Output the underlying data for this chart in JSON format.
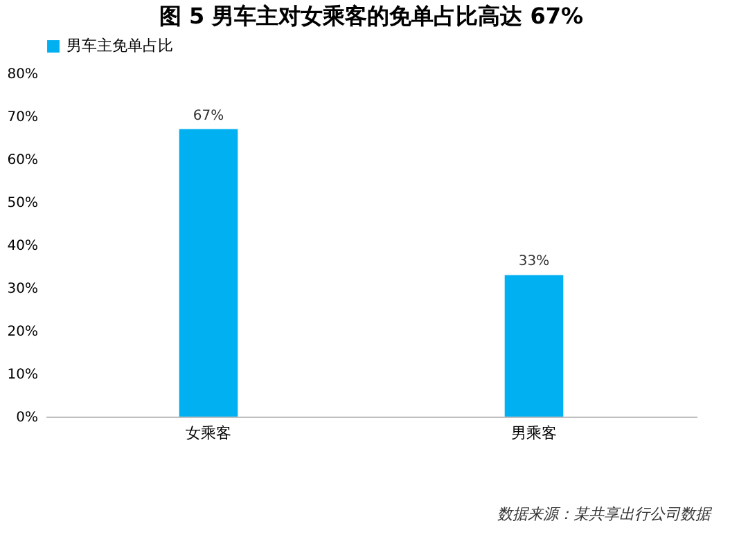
{
  "chart_data": {
    "type": "bar",
    "title": "图 5  男车主对女乘客的免单占比高达 67%",
    "categories": [
      "女乘客",
      "男乘客"
    ],
    "series": [
      {
        "name": "男车主免单占比",
        "color": "#00b0f0",
        "values": [
          67,
          33
        ],
        "value_labels": [
          "67%",
          "33%"
        ]
      }
    ],
    "ylim": [
      0,
      80
    ],
    "yticks": [
      {
        "value": 0,
        "label": "0%"
      },
      {
        "value": 10,
        "label": "10%"
      },
      {
        "value": 20,
        "label": "20%"
      },
      {
        "value": 30,
        "label": "30%"
      },
      {
        "value": 40,
        "label": "40%"
      },
      {
        "value": 50,
        "label": "50%"
      },
      {
        "value": 60,
        "label": "60%"
      },
      {
        "value": 70,
        "label": "70%"
      },
      {
        "value": 80,
        "label": "80%"
      }
    ],
    "grid": false,
    "legend": "top",
    "annotations": [
      "数据来源：某共享出行公司数据"
    ]
  }
}
